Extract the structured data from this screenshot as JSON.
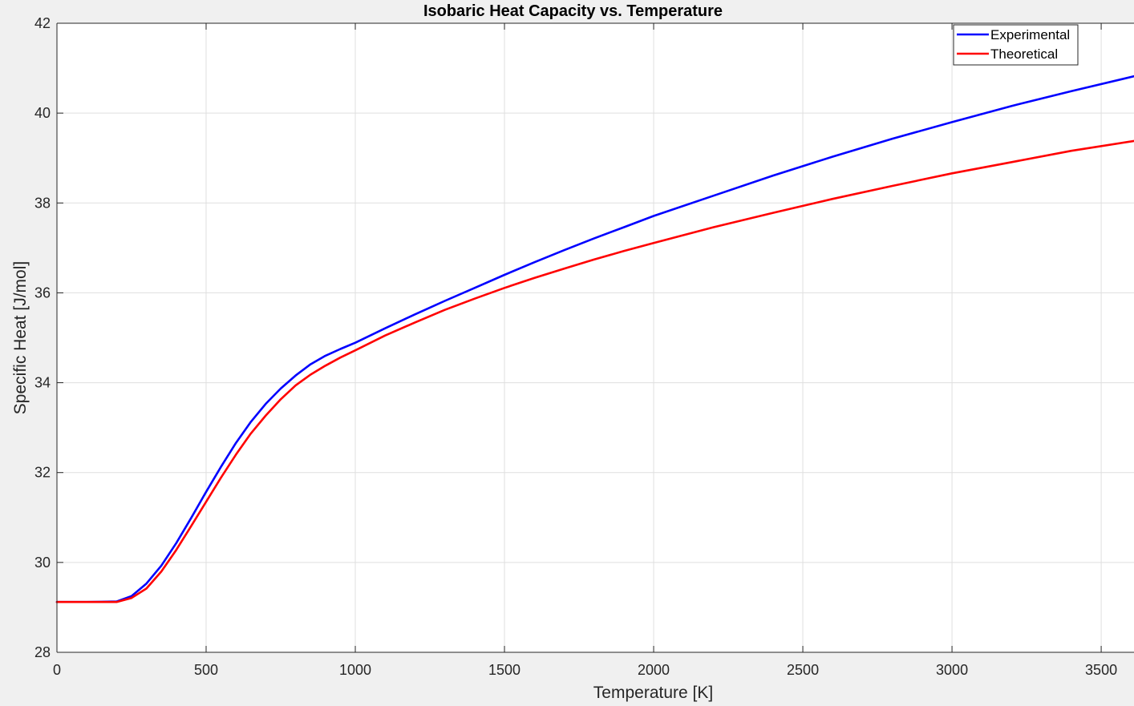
{
  "chart_data": {
    "type": "line",
    "title": "Isobaric Heat Capacity vs. Temperature",
    "xlabel": "Temperature [K]",
    "ylabel": "Specific Heat [J/mol]",
    "xlim": [
      0,
      3610
    ],
    "ylim": [
      28,
      42
    ],
    "xticks": [
      0,
      500,
      1000,
      1500,
      2000,
      2500,
      3000,
      3500
    ],
    "xtick_labels": [
      "0",
      "500",
      "1000",
      "1500",
      "2000",
      "2500",
      "3000",
      "3500"
    ],
    "yticks": [
      28,
      30,
      32,
      34,
      36,
      38,
      40,
      42
    ],
    "ytick_labels": [
      "28",
      "30",
      "32",
      "34",
      "36",
      "38",
      "40",
      "42"
    ],
    "grid": true,
    "legend_position": "top-right",
    "series": [
      {
        "name": "Experimental",
        "color": "#0000ff",
        "x": [
          0,
          100,
          200,
          250,
          300,
          350,
          400,
          450,
          500,
          550,
          600,
          650,
          700,
          750,
          800,
          850,
          900,
          950,
          1000,
          1100,
          1200,
          1300,
          1400,
          1500,
          1600,
          1700,
          1800,
          1900,
          2000,
          2200,
          2400,
          2600,
          2800,
          3000,
          3200,
          3400,
          3610
        ],
        "y": [
          29.12,
          29.12,
          29.13,
          29.25,
          29.53,
          29.93,
          30.43,
          30.99,
          31.57,
          32.13,
          32.66,
          33.13,
          33.53,
          33.87,
          34.16,
          34.41,
          34.6,
          34.75,
          34.89,
          35.21,
          35.52,
          35.82,
          36.11,
          36.4,
          36.68,
          36.95,
          37.21,
          37.46,
          37.71,
          38.16,
          38.61,
          39.03,
          39.43,
          39.8,
          40.16,
          40.49,
          40.82
        ]
      },
      {
        "name": "Theoretical",
        "color": "#ff0000",
        "x": [
          0,
          100,
          200,
          250,
          300,
          350,
          400,
          450,
          500,
          550,
          600,
          650,
          700,
          750,
          800,
          850,
          900,
          950,
          1000,
          1100,
          1200,
          1300,
          1400,
          1500,
          1600,
          1700,
          1800,
          1900,
          2000,
          2200,
          2400,
          2600,
          2800,
          3000,
          3200,
          3400,
          3610
        ],
        "y": [
          29.12,
          29.12,
          29.12,
          29.21,
          29.42,
          29.8,
          30.28,
          30.81,
          31.35,
          31.89,
          32.4,
          32.87,
          33.27,
          33.63,
          33.94,
          34.18,
          34.38,
          34.56,
          34.72,
          35.05,
          35.34,
          35.62,
          35.87,
          36.11,
          36.33,
          36.54,
          36.74,
          36.93,
          37.11,
          37.46,
          37.78,
          38.09,
          38.38,
          38.66,
          38.91,
          39.16,
          39.38
        ]
      }
    ]
  }
}
